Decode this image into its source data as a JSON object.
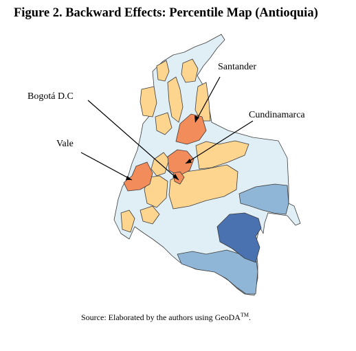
{
  "title": "Figure 2. Backward Effects: Percentile Map (Antioquia)",
  "labels": {
    "santander": "Santander",
    "bogota": "Bogotá D.C",
    "cundinamarca": "Cundinamarca",
    "vale": "Vale"
  },
  "source": {
    "text": "Source: Elaborated by the authors using GeoDA",
    "superscript": "TM",
    "end": "."
  },
  "colors": {
    "low_extreme": "#4a72b0",
    "low": "#8fb6d6",
    "below_median": "#e0eef5",
    "above_median": "#fdd58f",
    "high": "#f38c5b",
    "border": "#3b3b3b"
  }
}
